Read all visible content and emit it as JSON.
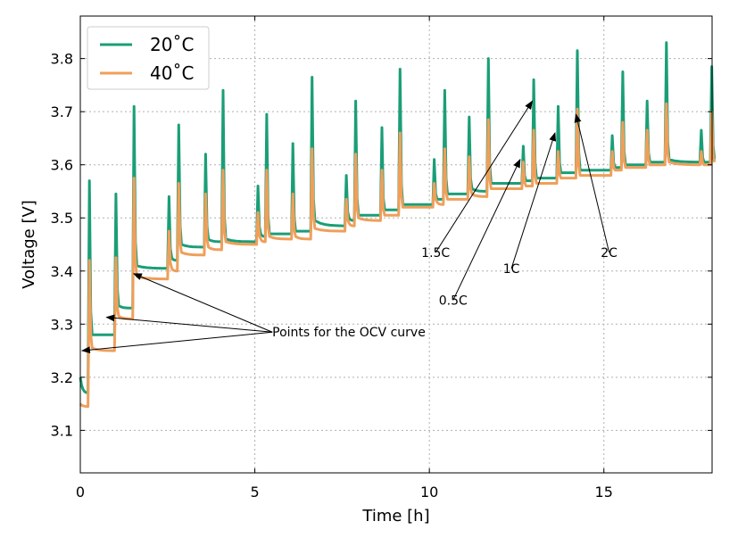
{
  "chart_data": {
    "type": "line",
    "title": "",
    "xlabel": "Time [h]",
    "ylabel": "Voltage [V]",
    "xlim": [
      0,
      18.1
    ],
    "ylim": [
      3.02,
      3.88
    ],
    "grid": true,
    "legend_position": "top-left",
    "x_ticks": [
      0,
      5,
      10,
      15
    ],
    "x_tick_labels": [
      "0",
      "5",
      "10",
      "15"
    ],
    "y_ticks": [
      3.1,
      3.2,
      3.3,
      3.4,
      3.5,
      3.6,
      3.7,
      3.8
    ],
    "y_tick_labels": [
      "3.1",
      "3.2",
      "3.3",
      "3.4",
      "3.5",
      "3.6",
      "3.7",
      "3.8"
    ],
    "series": [
      {
        "name": "20˚C",
        "color": "#1b9e77",
        "start_level": 3.2,
        "pulses": [
          {
            "t": 0.22,
            "before": 3.17,
            "peak": 3.57,
            "after": 3.28
          },
          {
            "t": 0.98,
            "before": 3.28,
            "peak": 3.545,
            "after": 3.335
          },
          {
            "t": 1.5,
            "before": 3.33,
            "peak": 3.71,
            "after": 3.41
          },
          {
            "t": 2.5,
            "before": 3.405,
            "peak": 3.54,
            "after": 3.425
          },
          {
            "t": 2.78,
            "before": 3.42,
            "peak": 3.675,
            "after": 3.45
          },
          {
            "t": 3.55,
            "before": 3.445,
            "peak": 3.62,
            "after": 3.46
          },
          {
            "t": 4.05,
            "before": 3.455,
            "peak": 3.74,
            "after": 3.46
          },
          {
            "t": 5.05,
            "before": 3.455,
            "peak": 3.56,
            "after": 3.47
          },
          {
            "t": 5.3,
            "before": 3.465,
            "peak": 3.695,
            "after": 3.47
          },
          {
            "t": 6.05,
            "before": 3.47,
            "peak": 3.64,
            "after": 3.475
          },
          {
            "t": 6.6,
            "before": 3.475,
            "peak": 3.765,
            "after": 3.495
          },
          {
            "t": 7.58,
            "before": 3.485,
            "peak": 3.58,
            "after": 3.5
          },
          {
            "t": 7.85,
            "before": 3.495,
            "peak": 3.72,
            "after": 3.505
          },
          {
            "t": 8.6,
            "before": 3.505,
            "peak": 3.67,
            "after": 3.515
          },
          {
            "t": 9.12,
            "before": 3.515,
            "peak": 3.78,
            "after": 3.525
          },
          {
            "t": 10.1,
            "before": 3.525,
            "peak": 3.61,
            "after": 3.535
          },
          {
            "t": 10.4,
            "before": 3.535,
            "peak": 3.74,
            "after": 3.545
          },
          {
            "t": 11.1,
            "before": 3.545,
            "peak": 3.69,
            "after": 3.555
          },
          {
            "t": 11.65,
            "before": 3.55,
            "peak": 3.8,
            "after": 3.565
          },
          {
            "t": 12.65,
            "before": 3.565,
            "peak": 3.635,
            "after": 3.57
          },
          {
            "t": 12.95,
            "before": 3.57,
            "peak": 3.76,
            "after": 3.575
          },
          {
            "t": 13.65,
            "before": 3.575,
            "peak": 3.71,
            "after": 3.585
          },
          {
            "t": 14.2,
            "before": 3.585,
            "peak": 3.815,
            "after": 3.59
          },
          {
            "t": 15.2,
            "before": 3.59,
            "peak": 3.655,
            "after": 3.595
          },
          {
            "t": 15.5,
            "before": 3.595,
            "peak": 3.775,
            "after": 3.6
          },
          {
            "t": 16.2,
            "before": 3.6,
            "peak": 3.72,
            "after": 3.605
          },
          {
            "t": 16.75,
            "before": 3.605,
            "peak": 3.83,
            "after": 3.61
          },
          {
            "t": 17.75,
            "before": 3.605,
            "peak": 3.665,
            "after": 3.605
          },
          {
            "t": 18.05,
            "before": 3.605,
            "peak": 3.785,
            "after": 3.61
          }
        ]
      },
      {
        "name": "40˚C",
        "color": "#ef9f5a",
        "start_level": 3.15,
        "pulses": [
          {
            "t": 0.22,
            "before": 3.145,
            "peak": 3.42,
            "after": 3.255
          },
          {
            "t": 0.98,
            "before": 3.25,
            "peak": 3.425,
            "after": 3.315
          },
          {
            "t": 1.5,
            "before": 3.31,
            "peak": 3.575,
            "after": 3.39
          },
          {
            "t": 2.5,
            "before": 3.385,
            "peak": 3.475,
            "after": 3.405
          },
          {
            "t": 2.78,
            "before": 3.4,
            "peak": 3.565,
            "after": 3.435
          },
          {
            "t": 3.55,
            "before": 3.43,
            "peak": 3.545,
            "after": 3.445
          },
          {
            "t": 4.05,
            "before": 3.44,
            "peak": 3.59,
            "after": 3.455
          },
          {
            "t": 5.05,
            "before": 3.45,
            "peak": 3.51,
            "after": 3.46
          },
          {
            "t": 5.3,
            "before": 3.455,
            "peak": 3.59,
            "after": 3.465
          },
          {
            "t": 6.05,
            "before": 3.46,
            "peak": 3.545,
            "after": 3.465
          },
          {
            "t": 6.6,
            "before": 3.46,
            "peak": 3.63,
            "after": 3.48
          },
          {
            "t": 7.58,
            "before": 3.475,
            "peak": 3.535,
            "after": 3.49
          },
          {
            "t": 7.85,
            "before": 3.485,
            "peak": 3.62,
            "after": 3.5
          },
          {
            "t": 8.6,
            "before": 3.495,
            "peak": 3.59,
            "after": 3.505
          },
          {
            "t": 9.12,
            "before": 3.505,
            "peak": 3.66,
            "after": 3.52
          },
          {
            "t": 10.1,
            "before": 3.52,
            "peak": 3.565,
            "after": 3.53
          },
          {
            "t": 10.4,
            "before": 3.525,
            "peak": 3.63,
            "after": 3.535
          },
          {
            "t": 11.1,
            "before": 3.535,
            "peak": 3.615,
            "after": 3.545
          },
          {
            "t": 11.65,
            "before": 3.54,
            "peak": 3.685,
            "after": 3.555
          },
          {
            "t": 12.65,
            "before": 3.555,
            "peak": 3.605,
            "after": 3.56
          },
          {
            "t": 12.95,
            "before": 3.56,
            "peak": 3.665,
            "after": 3.565
          },
          {
            "t": 13.65,
            "before": 3.565,
            "peak": 3.625,
            "after": 3.575
          },
          {
            "t": 14.2,
            "before": 3.575,
            "peak": 3.705,
            "after": 3.58
          },
          {
            "t": 15.2,
            "before": 3.58,
            "peak": 3.625,
            "after": 3.59
          },
          {
            "t": 15.5,
            "before": 3.59,
            "peak": 3.68,
            "after": 3.595
          },
          {
            "t": 16.2,
            "before": 3.595,
            "peak": 3.665,
            "after": 3.6
          },
          {
            "t": 16.75,
            "before": 3.6,
            "peak": 3.715,
            "after": 3.605
          },
          {
            "t": 17.75,
            "before": 3.6,
            "peak": 3.625,
            "after": 3.6
          },
          {
            "t": 18.05,
            "before": 3.6,
            "peak": 3.7,
            "after": 3.605
          }
        ]
      }
    ],
    "annotations": [
      {
        "text": "Points for the OCV curve",
        "anchor": [
          5.5,
          3.285
        ],
        "targets": [
          [
            1.53,
            3.395
          ],
          [
            0.75,
            3.313
          ],
          [
            0.05,
            3.25
          ]
        ]
      },
      {
        "text": "1.5C",
        "anchor": [
          10.18,
          3.435
        ],
        "targets": [
          [
            12.95,
            3.72
          ]
        ]
      },
      {
        "text": "0.5C",
        "anchor": [
          10.68,
          3.345
        ],
        "targets": [
          [
            12.6,
            3.61
          ]
        ]
      },
      {
        "text": "1C",
        "anchor": [
          12.35,
          3.405
        ],
        "targets": [
          [
            13.6,
            3.66
          ]
        ]
      },
      {
        "text": "2C",
        "anchor": [
          15.15,
          3.435
        ],
        "targets": [
          [
            14.2,
            3.695
          ]
        ]
      }
    ]
  }
}
